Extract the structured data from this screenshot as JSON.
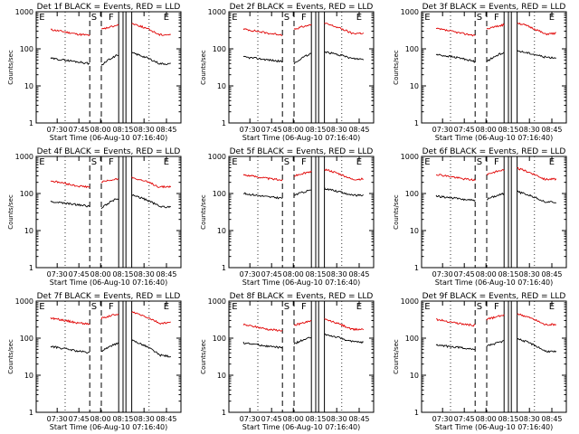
{
  "figure": {
    "background": "#ffffff"
  },
  "chart_data": [
    {
      "type": "line",
      "title": "Det 1f BLACK = Events, RED = LLD",
      "xlabel": "Start Time (06-Aug-10 07:16:40)",
      "ylabel": "Counts/sec",
      "x_ticks": [
        "07:30",
        "07:45",
        "08:00",
        "08:15",
        "08:30",
        "08:45"
      ],
      "y_ticks": [
        "1",
        "10",
        "100",
        "1000"
      ],
      "y_scale": "log",
      "ylim": [
        1,
        1000
      ],
      "markers": [
        "E",
        "S",
        "F",
        "E"
      ],
      "events_series": {
        "name": "Events",
        "color": "#000000",
        "values": [
          60,
          55,
          45,
          40,
          90,
          35,
          65,
          80,
          40,
          38
        ]
      },
      "lld_series": {
        "name": "LLD",
        "color": "#e00000",
        "values": [
          420,
          330,
          250,
          230,
          500,
          330,
          420,
          500,
          240,
          250
        ]
      }
    },
    {
      "type": "line",
      "title": "Det 2f BLACK = Events, RED = LLD",
      "xlabel": "Start Time (06-Aug-10 07:16:40)",
      "ylabel": "Counts/sec",
      "x_ticks": [
        "07:30",
        "07:45",
        "08:00",
        "08:15",
        "08:30",
        "08:45"
      ],
      "y_ticks": [
        "1",
        "10",
        "100",
        "1000"
      ],
      "y_scale": "log",
      "ylim": [
        1,
        1000
      ],
      "markers": [
        "E",
        "S",
        "F",
        "E"
      ],
      "events_series": {
        "name": "Events",
        "color": "#000000",
        "values": [
          70,
          60,
          50,
          45,
          90,
          40,
          70,
          85,
          55,
          50
        ]
      },
      "lld_series": {
        "name": "LLD",
        "color": "#e00000",
        "values": [
          440,
          340,
          260,
          240,
          520,
          340,
          430,
          500,
          260,
          270
        ]
      }
    },
    {
      "type": "line",
      "title": "Det 3f BLACK = Events, RED = LLD",
      "xlabel": "Start Time (06-Aug-10 07:16:40)",
      "ylabel": "Counts/sec",
      "x_ticks": [
        "07:30",
        "07:45",
        "08:00",
        "08:15",
        "08:30",
        "08:45"
      ],
      "y_ticks": [
        "1",
        "10",
        "100",
        "1000"
      ],
      "y_scale": "log",
      "ylim": [
        1,
        1000
      ],
      "markers": [
        "E",
        "S",
        "F",
        "E"
      ],
      "events_series": {
        "name": "Events",
        "color": "#000000",
        "values": [
          80,
          70,
          55,
          45,
          95,
          45,
          75,
          90,
          60,
          55
        ]
      },
      "lld_series": {
        "name": "LLD",
        "color": "#e00000",
        "values": [
          450,
          350,
          260,
          230,
          520,
          340,
          430,
          520,
          250,
          270
        ]
      }
    },
    {
      "type": "line",
      "title": "Det 4f BLACK = Events, RED = LLD",
      "xlabel": "Start Time (06-Aug-10 07:16:40)",
      "ylabel": "Counts/sec",
      "x_ticks": [
        "07:30",
        "07:45",
        "08:00",
        "08:15",
        "08:30",
        "08:45"
      ],
      "y_ticks": [
        "1",
        "10",
        "100",
        "1000"
      ],
      "y_scale": "log",
      "ylim": [
        1,
        1000
      ],
      "markers": [
        "E",
        "S",
        "F",
        "E"
      ],
      "events_series": {
        "name": "Events",
        "color": "#000000",
        "values": [
          70,
          60,
          50,
          45,
          100,
          40,
          70,
          95,
          45,
          40
        ]
      },
      "lld_series": {
        "name": "LLD",
        "color": "#e00000",
        "values": [
          300,
          220,
          160,
          150,
          300,
          200,
          240,
          280,
          150,
          160
        ]
      }
    },
    {
      "type": "line",
      "title": "Det 5f BLACK = Events, RED = LLD",
      "xlabel": "Start Time (06-Aug-10 07:16:40)",
      "ylabel": "Counts/sec",
      "x_ticks": [
        "07:30",
        "07:45",
        "08:00",
        "08:15",
        "08:30",
        "08:45"
      ],
      "y_ticks": [
        "1",
        "10",
        "100",
        "1000"
      ],
      "y_scale": "log",
      "ylim": [
        1,
        1000
      ],
      "markers": [
        "E",
        "S",
        "F",
        "E"
      ],
      "events_series": {
        "name": "Events",
        "color": "#000000",
        "values": [
          120,
          100,
          80,
          75,
          140,
          90,
          120,
          140,
          90,
          85
        ]
      },
      "lld_series": {
        "name": "LLD",
        "color": "#e00000",
        "values": [
          400,
          320,
          250,
          230,
          480,
          300,
          380,
          460,
          240,
          250
        ]
      }
    },
    {
      "type": "line",
      "title": "Det 6f BLACK = Events, RED = LLD",
      "xlabel": "Start Time (06-Aug-10 07:16:40)",
      "ylabel": "Counts/sec",
      "x_ticks": [
        "07:30",
        "07:45",
        "08:00",
        "08:15",
        "08:30",
        "08:45"
      ],
      "y_ticks": [
        "1",
        "10",
        "100",
        "1000"
      ],
      "y_scale": "log",
      "ylim": [
        1,
        1000
      ],
      "markers": [
        "E",
        "S",
        "F",
        "E"
      ],
      "events_series": {
        "name": "Events",
        "color": "#000000",
        "values": [
          100,
          85,
          70,
          65,
          120,
          70,
          95,
          115,
          60,
          55
        ]
      },
      "lld_series": {
        "name": "LLD",
        "color": "#e00000",
        "values": [
          430,
          330,
          250,
          230,
          500,
          330,
          420,
          490,
          240,
          250
        ]
      }
    },
    {
      "type": "line",
      "title": "Det 7f BLACK = Events, RED = LLD",
      "xlabel": "Start Time (06-Aug-10 07:16:40)",
      "ylabel": "Counts/sec",
      "x_ticks": [
        "07:30",
        "07:45",
        "08:00",
        "08:15",
        "08:30",
        "08:45"
      ],
      "y_ticks": [
        "1",
        "10",
        "100",
        "1000"
      ],
      "y_scale": "log",
      "ylim": [
        1,
        1000
      ],
      "markers": [
        "E",
        "S",
        "F",
        "E"
      ],
      "events_series": {
        "name": "Events",
        "color": "#000000",
        "values": [
          80,
          60,
          45,
          40,
          120,
          45,
          70,
          90,
          35,
          30
        ]
      },
      "lld_series": {
        "name": "LLD",
        "color": "#e00000",
        "values": [
          460,
          350,
          260,
          240,
          560,
          340,
          440,
          520,
          250,
          270
        ]
      }
    },
    {
      "type": "line",
      "title": "Det 8f BLACK = Events, RED = LLD",
      "xlabel": "Start Time (06-Aug-10 07:16:40)",
      "ylabel": "Counts/sec",
      "x_ticks": [
        "07:30",
        "07:45",
        "08:00",
        "08:15",
        "08:30",
        "08:45"
      ],
      "y_ticks": [
        "1",
        "10",
        "100",
        "1000"
      ],
      "y_scale": "log",
      "ylim": [
        1,
        1000
      ],
      "markers": [
        "E",
        "S",
        "F",
        "E"
      ],
      "events_series": {
        "name": "Events",
        "color": "#000000",
        "values": [
          90,
          75,
          60,
          55,
          120,
          70,
          100,
          130,
          80,
          75
        ]
      },
      "lld_series": {
        "name": "LLD",
        "color": "#e00000",
        "values": [
          300,
          230,
          170,
          160,
          340,
          220,
          280,
          330,
          170,
          180
        ]
      }
    },
    {
      "type": "line",
      "title": "Det 9f BLACK = Events, RED = LLD",
      "xlabel": "Start Time (06-Aug-10 07:16:40)",
      "ylabel": "Counts/sec",
      "x_ticks": [
        "07:30",
        "07:45",
        "08:00",
        "08:15",
        "08:30",
        "08:45"
      ],
      "y_ticks": [
        "1",
        "10",
        "100",
        "1000"
      ],
      "y_scale": "log",
      "ylim": [
        1,
        1000
      ],
      "markers": [
        "E",
        "S",
        "F",
        "E"
      ],
      "events_series": {
        "name": "Events",
        "color": "#000000",
        "values": [
          75,
          65,
          55,
          50,
          110,
          60,
          80,
          100,
          45,
          40
        ]
      },
      "lld_series": {
        "name": "LLD",
        "color": "#e00000",
        "values": [
          420,
          320,
          240,
          220,
          480,
          320,
          400,
          470,
          230,
          240
        ]
      }
    }
  ]
}
